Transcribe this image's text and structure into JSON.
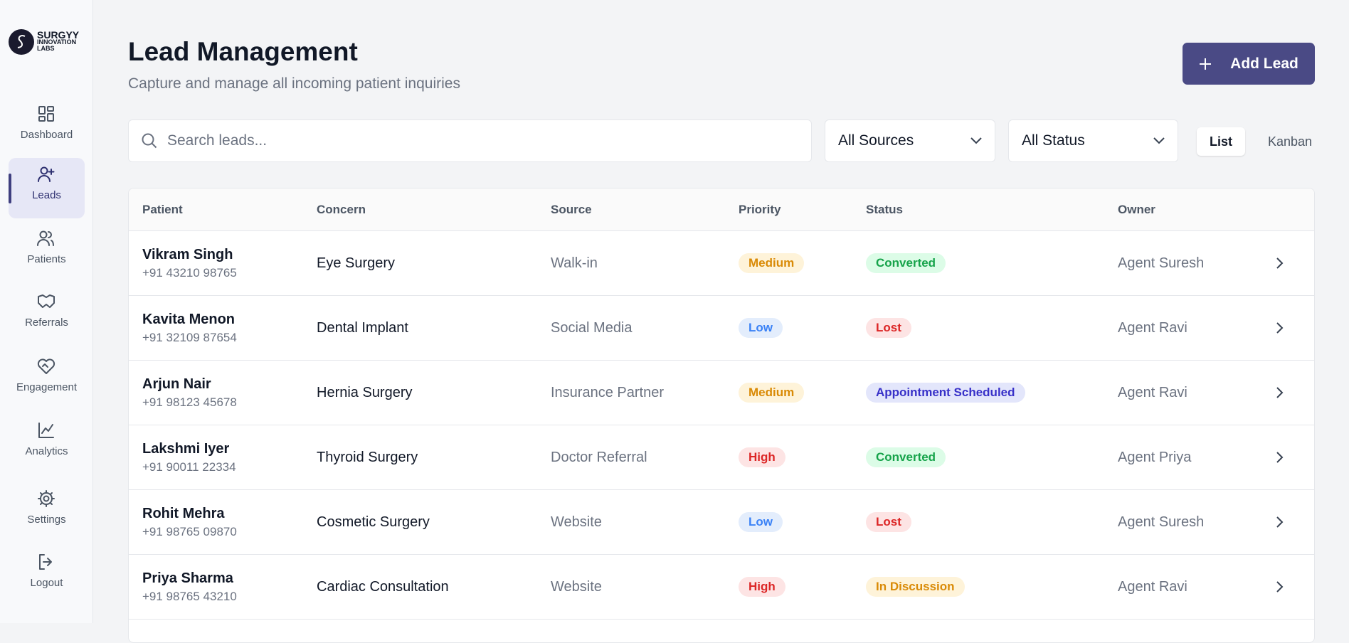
{
  "sidebar": {
    "logo": {
      "line1": "SURGYY",
      "line2": "INNOVATION",
      "line3": "LABS"
    },
    "nav": [
      "Dashboard",
      "Leads",
      "Patients",
      "Referrals",
      "Engagement",
      "Analytics",
      "Settings",
      "Logout"
    ],
    "active": 1
  },
  "header": {
    "title": "Lead Management",
    "subtitle": "Capture and manage all incoming patient inquiries",
    "add_button": "Add Lead"
  },
  "filters": {
    "search_placeholder": "Search leads...",
    "source": "All Sources",
    "status": "All Status",
    "views": [
      "List",
      "Kanban"
    ],
    "active_view": 0
  },
  "table": {
    "columns": [
      "Patient",
      "Concern",
      "Source",
      "Priority",
      "Status",
      "Owner"
    ],
    "rows": [
      {
        "name": "Vikram Singh",
        "phone": "+91 43210 98765",
        "concern": "Eye Surgery",
        "source": "Walk-in",
        "priority": {
          "label": "Medium",
          "color": "#d98a06",
          "bg": "#fef3d9"
        },
        "status": {
          "label": "Converted",
          "color": "#16a34a",
          "bg": "#dcfce7"
        },
        "owner": "Agent Suresh"
      },
      {
        "name": "Kavita Menon",
        "phone": "+91 32109 87654",
        "concern": "Dental Implant",
        "source": "Social Media",
        "priority": {
          "label": "Low",
          "color": "#3b82f6",
          "bg": "#e3edfc"
        },
        "status": {
          "label": "Lost",
          "color": "#dc2626",
          "bg": "#fde4e4"
        },
        "owner": "Agent Ravi"
      },
      {
        "name": "Arjun Nair",
        "phone": "+91 98123 45678",
        "concern": "Hernia Surgery",
        "source": "Insurance Partner",
        "priority": {
          "label": "Medium",
          "color": "#d98a06",
          "bg": "#fef3d9"
        },
        "status": {
          "label": "Appointment Scheduled",
          "color": "#3730c8",
          "bg": "#e3e6fb"
        },
        "owner": "Agent Ravi"
      },
      {
        "name": "Lakshmi Iyer",
        "phone": "+91 90011 22334",
        "concern": "Thyroid Surgery",
        "source": "Doctor Referral",
        "priority": {
          "label": "High",
          "color": "#dc2626",
          "bg": "#fde4e4"
        },
        "status": {
          "label": "Converted",
          "color": "#16a34a",
          "bg": "#dcfce7"
        },
        "owner": "Agent Priya"
      },
      {
        "name": "Rohit Mehra",
        "phone": "+91 98765 09870",
        "concern": "Cosmetic Surgery",
        "source": "Website",
        "priority": {
          "label": "Low",
          "color": "#3b82f6",
          "bg": "#e3edfc"
        },
        "status": {
          "label": "Lost",
          "color": "#dc2626",
          "bg": "#fde4e4"
        },
        "owner": "Agent Suresh"
      },
      {
        "name": "Priya Sharma",
        "phone": "+91 98765 43210",
        "concern": "Cardiac Consultation",
        "source": "Website",
        "priority": {
          "label": "High",
          "color": "#dc2626",
          "bg": "#fde4e4"
        },
        "status": {
          "label": "In Discussion",
          "color": "#d98a06",
          "bg": "#fef3d9"
        },
        "owner": "Agent Ravi"
      }
    ]
  }
}
